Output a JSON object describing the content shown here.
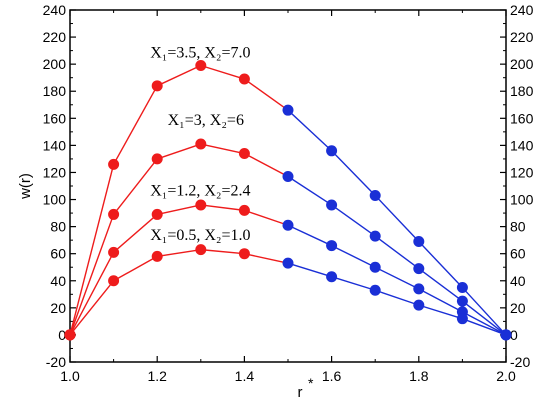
{
  "chart_data": {
    "type": "line",
    "title": "",
    "xlabel": "r*",
    "ylabel": "w(r)",
    "xlim": [
      1.0,
      2.0
    ],
    "ylim": [
      -20,
      240
    ],
    "xticks": [
      "1.0",
      "1.2",
      "1.4",
      "1.6",
      "1.8",
      "2.0"
    ],
    "yticks": [
      "-20",
      "0",
      "20",
      "40",
      "60",
      "80",
      "100",
      "120",
      "140",
      "160",
      "180",
      "200",
      "220",
      "240"
    ],
    "grid": false,
    "legend": "none",
    "colors": {
      "segment_inner": "#ee1c1c",
      "segment_outer": "#1a2fd6"
    },
    "split_x": 1.5,
    "x": [
      1.0,
      1.1,
      1.2,
      1.3,
      1.4,
      1.5,
      1.6,
      1.7,
      1.8,
      1.9,
      2.0
    ],
    "series": [
      {
        "label": "X1=3.5, X2=7.0",
        "values": [
          0,
          126,
          184,
          199,
          189,
          166,
          136,
          103,
          69,
          35,
          0
        ]
      },
      {
        "label": "X1=3, X2=6",
        "values": [
          0,
          89,
          130,
          141,
          134,
          117,
          96,
          73,
          49,
          25,
          0
        ]
      },
      {
        "label": "X1=1.2, X2=2.4",
        "values": [
          0,
          61,
          89,
          96,
          92,
          81,
          66,
          50,
          34,
          17,
          0
        ]
      },
      {
        "label": "X1=0.5, X2=1.0",
        "values": [
          0,
          40,
          58,
          63,
          60,
          53,
          43,
          33,
          22,
          12,
          0
        ]
      }
    ],
    "annotations": [
      {
        "text": "X₁=3.5, X₂=7.0",
        "x": 1.2,
        "y": 205
      },
      {
        "text": "X₁=3, X₂=6",
        "x": 1.24,
        "y": 155
      },
      {
        "text": "X₁=1.2, X₂=2.4",
        "x": 1.2,
        "y": 103
      },
      {
        "text": "X₁=0.5, X₂=1.0",
        "x": 1.2,
        "y": 70
      }
    ]
  }
}
